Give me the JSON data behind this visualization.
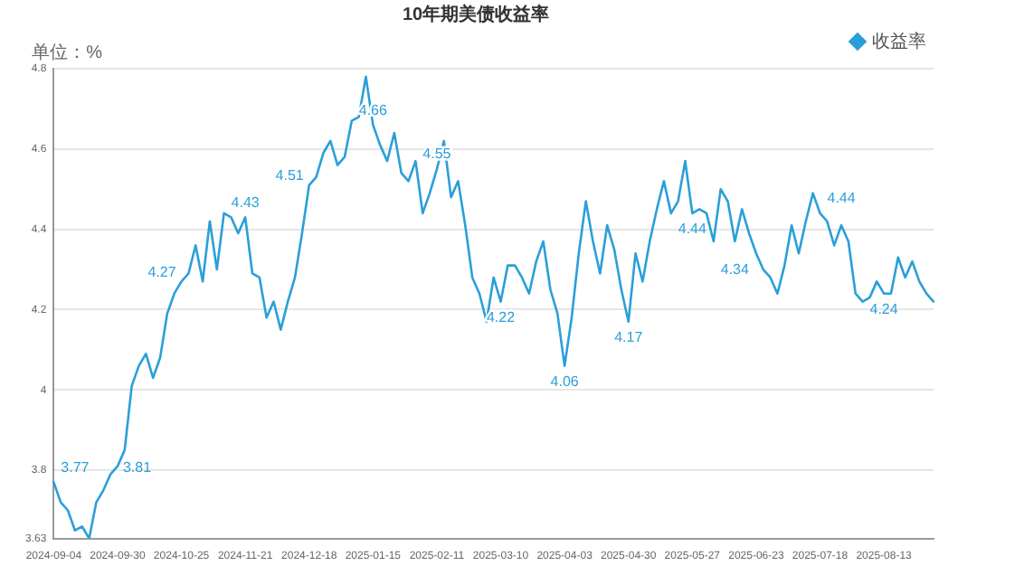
{
  "chart_data": {
    "type": "line",
    "title": "10年期美债收益率",
    "ylabel": "单位：%",
    "categories": [
      "2024-09-04",
      null,
      null,
      null,
      null,
      null,
      null,
      null,
      null,
      "2024-09-30",
      null,
      null,
      null,
      null,
      null,
      null,
      null,
      null,
      "2024-10-25",
      null,
      null,
      null,
      null,
      null,
      null,
      null,
      null,
      "2024-11-21",
      null,
      null,
      null,
      null,
      null,
      null,
      null,
      null,
      "2024-12-18",
      null,
      null,
      null,
      null,
      null,
      null,
      null,
      null,
      "2025-01-15",
      null,
      null,
      null,
      null,
      null,
      null,
      null,
      null,
      "2025-02-11",
      null,
      null,
      null,
      null,
      null,
      null,
      null,
      null,
      "2025-03-10",
      null,
      null,
      null,
      null,
      null,
      null,
      null,
      null,
      "2025-04-03",
      null,
      null,
      null,
      null,
      null,
      null,
      null,
      null,
      "2025-04-30",
      null,
      null,
      null,
      null,
      null,
      null,
      null,
      null,
      "2025-05-27",
      null,
      null,
      null,
      null,
      null,
      null,
      null,
      null,
      "2025-06-23",
      null,
      null,
      null,
      null,
      null,
      null,
      null,
      null,
      "2025-07-18",
      null,
      null,
      null,
      null,
      null,
      null,
      null,
      null,
      "2025-08-13",
      null,
      null,
      null,
      null,
      null,
      null,
      null
    ],
    "series": [
      {
        "name": "收益率",
        "color": "#2a9fd8",
        "values": [
          3.77,
          3.72,
          3.7,
          3.65,
          3.66,
          3.63,
          3.72,
          3.75,
          3.79,
          3.81,
          3.85,
          4.01,
          4.06,
          4.09,
          4.03,
          4.08,
          4.19,
          4.24,
          4.27,
          4.29,
          4.36,
          4.27,
          4.42,
          4.3,
          4.44,
          4.43,
          4.39,
          4.43,
          4.29,
          4.28,
          4.18,
          4.22,
          4.15,
          4.22,
          4.28,
          4.39,
          4.51,
          4.53,
          4.59,
          4.62,
          4.56,
          4.58,
          4.67,
          4.68,
          4.78,
          4.66,
          4.61,
          4.57,
          4.64,
          4.54,
          4.52,
          4.57,
          4.44,
          4.49,
          4.55,
          4.62,
          4.48,
          4.52,
          4.41,
          4.28,
          4.24,
          4.17,
          4.28,
          4.22,
          4.31,
          4.31,
          4.28,
          4.24,
          4.32,
          4.37,
          4.25,
          4.19,
          4.06,
          4.18,
          4.34,
          4.47,
          4.37,
          4.29,
          4.41,
          4.35,
          4.25,
          4.17,
          4.34,
          4.27,
          4.37,
          4.45,
          4.52,
          4.44,
          4.47,
          4.57,
          4.44,
          4.45,
          4.44,
          4.37,
          4.5,
          4.47,
          4.37,
          4.45,
          4.39,
          4.34,
          4.3,
          4.28,
          4.24,
          4.31,
          4.41,
          4.34,
          4.42,
          4.49,
          4.44,
          4.42,
          4.36,
          4.41,
          4.37,
          4.24,
          4.22,
          4.23,
          4.27,
          4.24,
          4.24,
          4.33,
          4.28,
          4.32,
          4.27,
          4.24,
          4.22
        ],
        "value_labels": [
          "3.77",
          null,
          null,
          null,
          null,
          null,
          null,
          null,
          null,
          "3.81",
          null,
          null,
          null,
          null,
          null,
          null,
          null,
          null,
          "4.27",
          null,
          null,
          null,
          null,
          null,
          null,
          null,
          null,
          "4.43",
          null,
          null,
          null,
          null,
          null,
          null,
          null,
          null,
          "4.51",
          null,
          null,
          null,
          null,
          null,
          null,
          null,
          null,
          "4.66",
          null,
          null,
          null,
          null,
          null,
          null,
          null,
          null,
          "4.55",
          null,
          null,
          null,
          null,
          null,
          null,
          null,
          null,
          "4.22",
          null,
          null,
          null,
          null,
          null,
          null,
          null,
          null,
          "4.06",
          null,
          null,
          null,
          null,
          null,
          null,
          null,
          null,
          "4.17",
          null,
          null,
          null,
          null,
          null,
          null,
          null,
          null,
          "4.44",
          null,
          null,
          null,
          null,
          null,
          null,
          null,
          null,
          "4.34",
          null,
          null,
          null,
          null,
          null,
          null,
          null,
          null,
          "4.44",
          null,
          null,
          null,
          null,
          null,
          null,
          null,
          null,
          "4.24",
          null,
          null,
          null,
          null,
          null,
          null,
          null
        ]
      }
    ],
    "ylim": [
      3.63,
      4.8
    ],
    "yticks": [
      3.63,
      3.8,
      4,
      4.2,
      4.4,
      4.6,
      4.8
    ],
    "grid": "y",
    "legend": "top right",
    "marker": "none",
    "line_style": "solid"
  }
}
